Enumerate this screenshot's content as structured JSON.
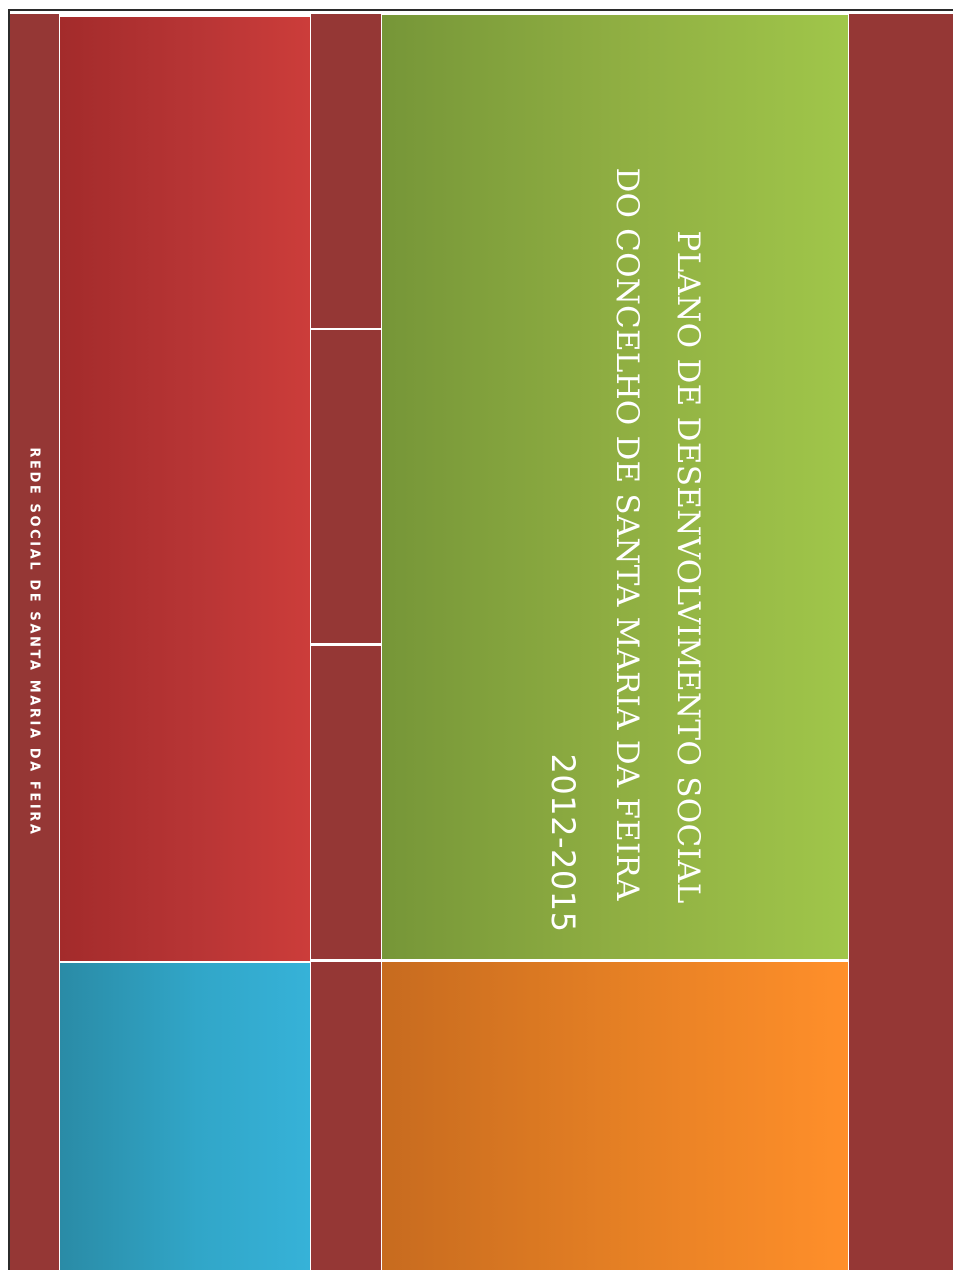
{
  "cover": {
    "spine_text": "REDE SOCIAL DE SANTA MARIA DA FEIRA",
    "title_line_1": "PLANO DE DESENVOLVIMENTO SOCIAL",
    "title_line_2": "DO CONCELHO DE SANTA MARIA DA FEIRA",
    "years": "2012-2015"
  },
  "colors": {
    "maroon": "#953735",
    "red": "#c0392b",
    "blue": "#31a6c8",
    "green": "#8fae42",
    "orange": "#e47f24"
  }
}
